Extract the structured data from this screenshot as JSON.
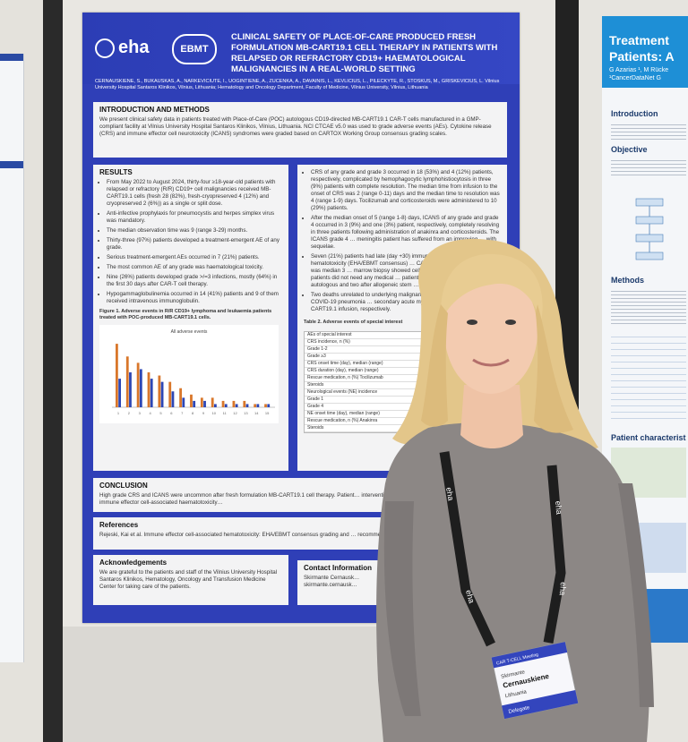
{
  "poster": {
    "eha": "eha",
    "ebmt": "EBMT",
    "title": "Clinical safety of place-of-care produced fresh formulation MB-CART19.1 cell therapy in patients with relapsed or refractory CD19+ haematological malignancies in a real-world setting",
    "authors": "CERNAUSKIENE, S., BUKAUSKAS, A., NARKEVICIUTE, I., UOGINTIENE, A., ZUCENKA, A., DAVAINIS, L., KEVLICIUS, L., PILECKYTE, R., STOSKUS, M., GRISKEVICIUS, L. Vilnius University Hospital Santaros Klinikos, Vilnius, Lithuania; Hematology and Oncology Department, Faculty of Medicine, Vilnius University, Vilnius, Lithuania",
    "intro_heading": "INTRODUCTION AND METHODS",
    "intro_text": "We present clinical safety data in patients treated with Place-of-Care (POC) autologous CD19-directed MB-CART19.1 CAR-T cells manufactured in a GMP-compliant facility at Vilnius University Hospital Santaros Klinikos, Vilnius, Lithuania. NCI CTCAE v5.0 was used to grade adverse events (AEs). Cytokine release (CRS) and immune effector cell neurotoxicity (ICANS) syndromes were graded based on CARTOX Working Group consensus grading scales.",
    "results_heading": "RESULTS",
    "results_left": [
      "From May 2022 to August 2024, thirty-four ≥18-year-old patients with relapsed or refractory (R/R) CD19+ cell malignancies received MB-CART19.1 cells (fresh 28 (82%), fresh-cryopreserved 4 (12%) and cryopreserved 2 (6%)) as a single or split dose.",
      "Anti-infective prophylaxis for pneumocystis and herpes simplex virus was mandatory.",
      "The median observation time was 9 (range 3-29) months.",
      "Thirty-three (97%) patients developed a treatment-emergent AE of any grade.",
      "Serious treatment-emergent AEs occurred in 7 (21%) patients.",
      "The most common AE of any grade was haematological toxicity.",
      "Nine (26%) patients developed grade >/=3 infections, mostly (64%) in the first 30 days after CAR-T cell therapy.",
      "Hypogammaglobulinemia occurred in 14 (41%) patients and 9 of them received intravenous immunoglobulin."
    ],
    "figure_caption": "Figure 1. Adverse events in R/R CD19+ lymphoma and leukaemia patients treated with POC-produced MB-CART19.1 cells.",
    "results_right": [
      "CRS of any grade and grade 3 occurred in 18 (53%) and 4 (12%) patients, respectively, complicated by hemophagocytic lymphohistiocytosis in three (9%) patients with complete resolution. The median time from infusion to the onset of CRS was 2 (range 0-11) days and the median time to resolution was 4 (range 1-9) days. Tocilizumab and corticosteroids were administered to 10 (29%) patients.",
      "After the median onset of 5 (range 1-8) days, ICANS of any grade and grade 4 occurred in 3 (9%) and one (3%) patient, respectively, completely resolving in three patients following administration of anakinra and corticosteroids. The ICANS grade 4 … meningitis patient has suffered from an improving … with sequelae.",
      "Seven (21%) patients had late (day +30) immune effector cell-associated hematotoxicity (EHA/EBMT consensus) … CAR-T CAR-HEMATOTOX score was median 3 … marrow biopsy showed cellularity <10% or … Two of the patients did not need any medical … patient recovered after G-CSF and … autologous and two after allogeneic stem …",
      "Two deaths unrelated to underlying malignancy … One patient died of COVID-19 pneumonia … secondary acute myeloid leukaemia 6 … CART19.1 infusion, respectively."
    ],
    "table_title": "Table 2. Adverse events of special interest",
    "table_rows": [
      "AEs of special interest",
      "CRS incidence, n (%)",
      "Grade 1-2",
      "Grade ≥3",
      "CRS onset time (day), median (range)",
      "CRS duration (day), median (range)",
      "Rescue medication, n (%)   Tocilizumab",
      "Steroids",
      "Neurological events (NE) incidence",
      "Grade 1",
      "Grade 4",
      "NE onset time (day), median (range)",
      "Rescue medication, n (%)   Anakinra",
      "Steroids"
    ],
    "conclusion_heading": "CONCLUSION",
    "conclusion_text": "High grade CRS and ICANS were uncommon after fresh formulation MB-CART19.1 cell therapy. Patient… interventions including stem cell support for the late immune effector cell-associated haematotoxicity…",
    "references_heading": "References",
    "references_text": "Rejeski, Kai et al. Immune effector cell-associated hematotoxicity: EHA/EBMT consensus grading and … recommendations. Blood 2023; 865-877",
    "ack_heading": "Acknowledgements",
    "ack_text": "We are grateful to the patients and staff of the Vilnius University Hospital Santaros Klinikos, Hematology, Oncology and Transfusion Medicine Center for taking care of the patients.",
    "contact_heading": "Contact Information",
    "contact_name": "Skirmante Cernausk…",
    "contact_email": "skirmante.cernausk…"
  },
  "chart_data": {
    "type": "bar",
    "title": "All adverse events",
    "categories": [
      "1",
      "2",
      "3",
      "4",
      "5",
      "6",
      "7",
      "8",
      "9",
      "10",
      "11",
      "12",
      "13",
      "14",
      "15"
    ],
    "series": [
      {
        "values": [
          20,
          16,
          14,
          11,
          10,
          8,
          6,
          4,
          3,
          3,
          2,
          2,
          2,
          1,
          1
        ]
      },
      {
        "values": [
          9,
          11,
          12,
          9,
          8,
          5,
          3,
          2,
          2,
          1,
          1,
          1,
          1,
          1,
          1
        ]
      }
    ],
    "colors": [
      "#d9772b",
      "#2c46b5"
    ]
  },
  "right_poster": {
    "title_line1": "Treatment",
    "title_line2": "Patients: A",
    "authors_line1": "G Azarias ¹, M Rücke",
    "authors_line2": "¹CancerDataNet G",
    "introduction": "Introduction",
    "objective": "Objective",
    "methods": "Methods",
    "patient_characteristics": "Patient characterist"
  },
  "badge": {
    "meeting": "CAR T-CELL Meeting",
    "first_name": "Skirmante",
    "last_name": "Cernauskiene",
    "country": "Lithuania",
    "role": "Delegate",
    "lanyard": "eha"
  }
}
